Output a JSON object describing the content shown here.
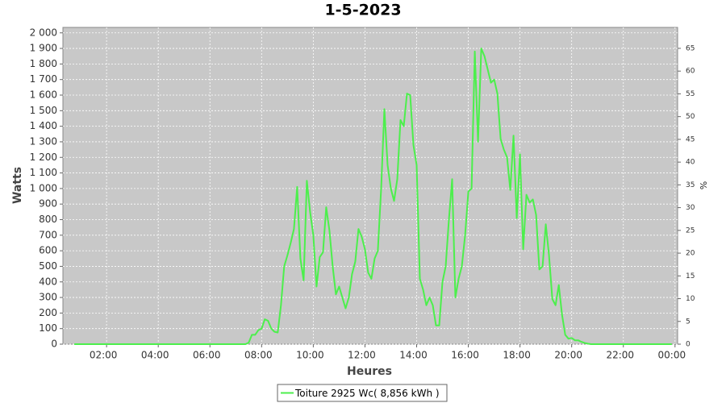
{
  "chart_data": {
    "type": "line",
    "title": "1-5-2023",
    "x_label": "Heures",
    "y_label": "Watts",
    "y2_label": "%",
    "x": [
      0.75,
      7.375,
      7.5,
      7.625,
      7.75,
      7.875,
      8.0,
      8.125,
      8.25,
      8.375,
      8.5,
      8.625,
      8.75,
      8.875,
      9.0,
      9.125,
      9.25,
      9.375,
      9.5,
      9.625,
      9.75,
      9.875,
      10.0,
      10.125,
      10.25,
      10.375,
      10.5,
      10.625,
      10.75,
      10.875,
      11.0,
      11.125,
      11.25,
      11.375,
      11.5,
      11.625,
      11.75,
      11.875,
      12.0,
      12.125,
      12.25,
      12.375,
      12.5,
      12.625,
      12.75,
      12.875,
      13.0,
      13.125,
      13.25,
      13.375,
      13.5,
      13.625,
      13.75,
      13.875,
      14.0,
      14.125,
      14.25,
      14.375,
      14.5,
      14.625,
      14.75,
      14.875,
      15.0,
      15.125,
      15.25,
      15.375,
      15.5,
      15.625,
      15.75,
      15.875,
      16.0,
      16.125,
      16.25,
      16.375,
      16.5,
      16.625,
      16.75,
      16.875,
      17.0,
      17.125,
      17.25,
      17.375,
      17.5,
      17.625,
      17.75,
      17.875,
      18.0,
      18.125,
      18.25,
      18.375,
      18.5,
      18.625,
      18.75,
      18.875,
      19.0,
      19.125,
      19.25,
      19.375,
      19.5,
      19.625,
      19.75,
      19.875,
      20.0,
      20.125,
      20.25,
      20.375,
      20.5,
      20.625,
      20.75,
      23.875
    ],
    "series": [
      {
        "name": "Toiture 2925 Wc( 8,856 kWh )",
        "color": "#4cef4c",
        "values": [
          0,
          0,
          10,
          60,
          60,
          90,
          100,
          160,
          150,
          100,
          80,
          75,
          250,
          500,
          570,
          650,
          740,
          1010,
          550,
          410,
          1050,
          850,
          700,
          370,
          560,
          590,
          880,
          730,
          500,
          320,
          370,
          300,
          230,
          300,
          450,
          530,
          740,
          690,
          610,
          460,
          420,
          550,
          600,
          1000,
          1510,
          1150,
          1000,
          920,
          1060,
          1440,
          1400,
          1610,
          1600,
          1280,
          1150,
          420,
          350,
          250,
          300,
          250,
          120,
          120,
          400,
          500,
          800,
          1060,
          300,
          420,
          500,
          700,
          980,
          1000,
          1880,
          1300,
          1900,
          1850,
          1765,
          1680,
          1700,
          1610,
          1320,
          1250,
          1200,
          990,
          1340,
          810,
          1220,
          610,
          960,
          910,
          930,
          830,
          480,
          500,
          770,
          570,
          290,
          250,
          380,
          190,
          60,
          35,
          40,
          25,
          25,
          15,
          8,
          3,
          0,
          0
        ]
      }
    ],
    "xlim": [
      0.31,
      24.1
    ],
    "xticks": [
      {
        "value": 2,
        "label": "02:00"
      },
      {
        "value": 4,
        "label": "04:00"
      },
      {
        "value": 6,
        "label": "06:00"
      },
      {
        "value": 8,
        "label": "08:00"
      },
      {
        "value": 10,
        "label": "10:00"
      },
      {
        "value": 12,
        "label": "12:00"
      },
      {
        "value": 14,
        "label": "14:00"
      },
      {
        "value": 16,
        "label": "16:00"
      },
      {
        "value": 18,
        "label": "18:00"
      },
      {
        "value": 20,
        "label": "20:00"
      },
      {
        "value": 22,
        "label": "22:00"
      },
      {
        "value": 24,
        "label": "00:00"
      }
    ],
    "ylim": [
      0,
      2035
    ],
    "yticks": [
      0,
      100,
      200,
      300,
      400,
      500,
      600,
      700,
      800,
      900,
      {
        "value": 1000,
        "label": "1 000"
      },
      {
        "value": 1100,
        "label": "1 100"
      },
      {
        "value": 1200,
        "label": "1 200"
      },
      {
        "value": 1300,
        "label": "1 300"
      },
      {
        "value": 1400,
        "label": "1 400"
      },
      {
        "value": 1500,
        "label": "1 500"
      },
      {
        "value": 1600,
        "label": "1 600"
      },
      {
        "value": 1700,
        "label": "1 700"
      },
      {
        "value": 1800,
        "label": "1 800"
      },
      {
        "value": 1900,
        "label": "1 900"
      },
      {
        "value": 2000,
        "label": "2 000"
      }
    ],
    "y2lim": [
      0,
      69.6
    ],
    "y2ticks": [
      0,
      5,
      10,
      15,
      20,
      25,
      30,
      35,
      40,
      45,
      50,
      55,
      60,
      65
    ],
    "grid": true,
    "legend": "bottom"
  }
}
